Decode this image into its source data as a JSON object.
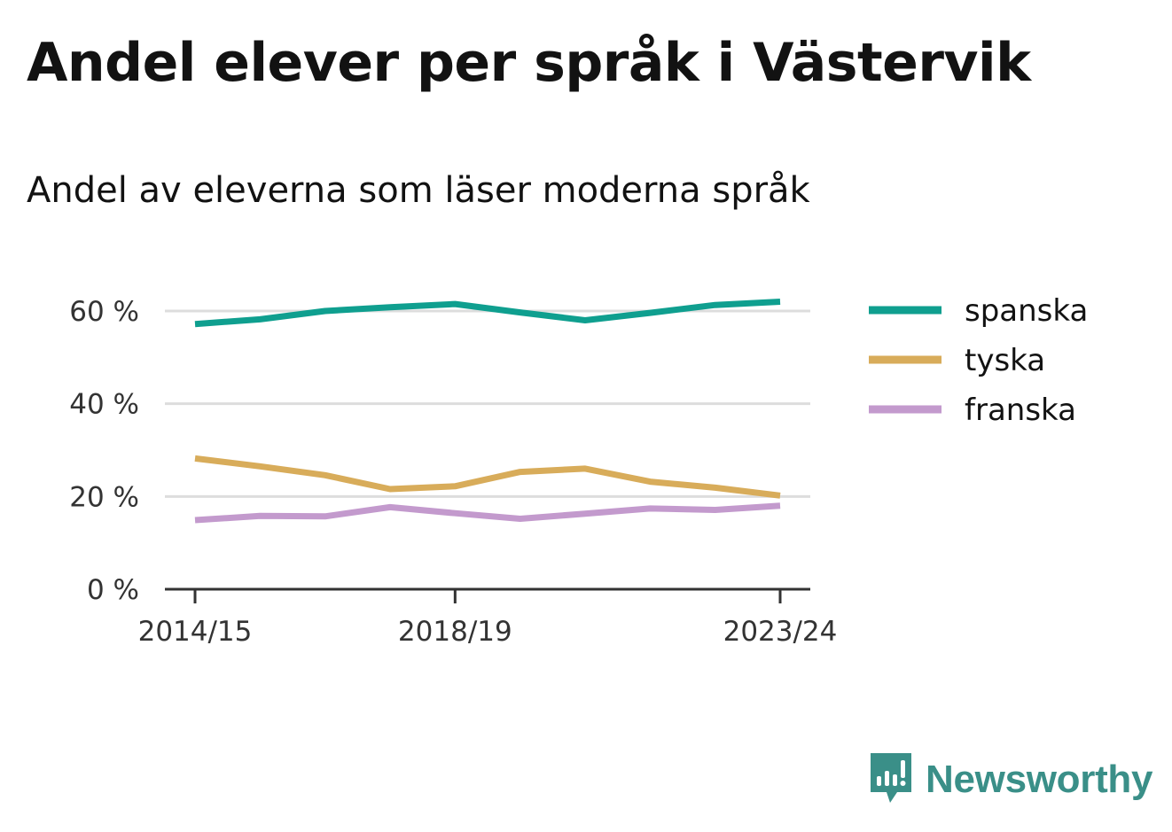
{
  "title": "Andel elever per språk i Västervik",
  "subtitle": "Andel av eleverna som läser moderna språk",
  "brand": "Newsworthy",
  "brand_icon": "newsworthy-logo-icon",
  "chart_data": {
    "type": "line",
    "title": "",
    "xlabel": "",
    "ylabel": "",
    "x": [
      "2014/15",
      "2015/16",
      "2016/17",
      "2017/18",
      "2018/19",
      "2019/20",
      "2020/21",
      "2021/22",
      "2022/23",
      "2023/24"
    ],
    "x_tick_labels": [
      "2014/15",
      "2018/19",
      "2023/24"
    ],
    "y_ticks": [
      0,
      20,
      40,
      60
    ],
    "y_tick_labels": [
      "0 %",
      "20 %",
      "40 %",
      "60 %"
    ],
    "ylim": [
      0,
      60
    ],
    "grid": true,
    "legend_position": "right",
    "series": [
      {
        "name": "spanska",
        "color": "#0f9f8f",
        "values": [
          57.2,
          58.2,
          60.0,
          60.8,
          61.5,
          59.7,
          58.0,
          59.6,
          61.3,
          62.0
        ]
      },
      {
        "name": "tyska",
        "color": "#d8ac5a",
        "values": [
          28.2,
          26.5,
          24.6,
          21.6,
          22.2,
          25.3,
          26.0,
          23.2,
          21.9,
          20.2
        ]
      },
      {
        "name": "franska",
        "color": "#c39acd",
        "values": [
          14.9,
          15.8,
          15.7,
          17.7,
          16.4,
          15.2,
          16.3,
          17.4,
          17.1,
          18.0
        ]
      }
    ]
  }
}
